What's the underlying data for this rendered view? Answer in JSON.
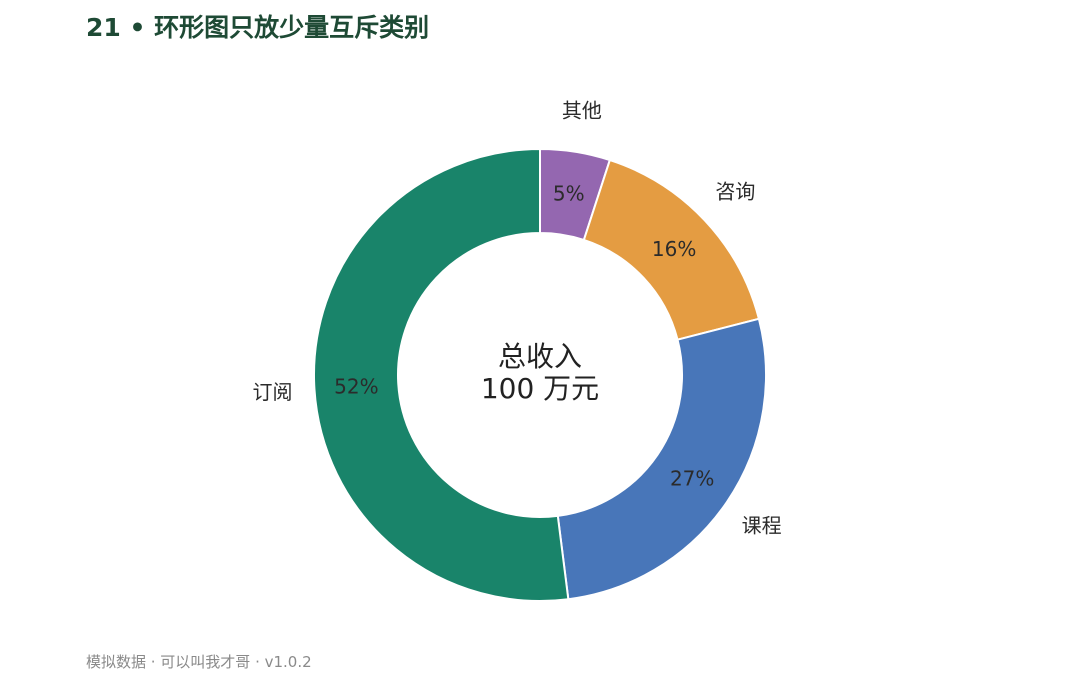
{
  "page": {
    "title": "21 • 环形图只放少量互斥类别",
    "footer": "模拟数据 · 可以叫我才哥 · v1.0.2"
  },
  "chart_data": {
    "type": "pie",
    "variant": "donut",
    "title": "21 • 环形图只放少量互斥类别",
    "center_text": [
      "总收入",
      "100 万元"
    ],
    "categories": [
      "其他",
      "咨询",
      "课程",
      "订阅"
    ],
    "values": [
      5,
      16,
      27,
      52
    ],
    "value_labels": [
      "5%",
      "16%",
      "27%",
      "52%"
    ],
    "colors": [
      "#9467b0",
      "#e49c42",
      "#4876b9",
      "#19846a"
    ],
    "start_angle": "12 o'clock",
    "direction": "clockwise",
    "legend": "none",
    "labels_outside": true
  }
}
